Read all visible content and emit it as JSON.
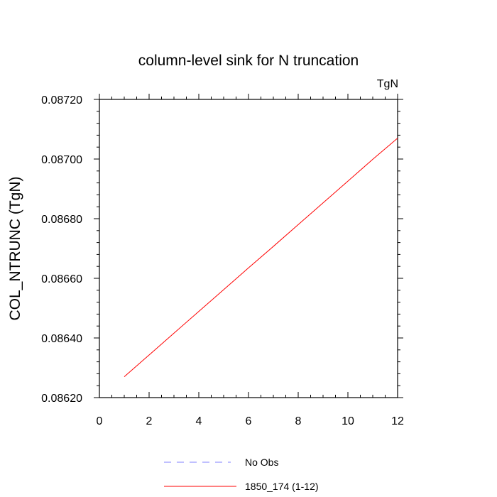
{
  "chart_data": {
    "type": "line",
    "title": "column-level sink for N truncation",
    "units_label": "TgN",
    "ylabel": "COL_NTRUNC  (TgN)",
    "xlabel": "",
    "xlim": [
      0,
      12
    ],
    "ylim": [
      0.0862,
      0.0872
    ],
    "x_ticks": [
      0,
      2,
      4,
      6,
      8,
      10,
      12
    ],
    "x_tick_labels": [
      "0",
      "2",
      "4",
      "6",
      "8",
      "10",
      "12"
    ],
    "y_ticks": [
      0.0862,
      0.0864,
      0.0866,
      0.0868,
      0.087,
      0.0872
    ],
    "y_tick_labels": [
      "0.08620",
      "0.08640",
      "0.08660",
      "0.08680",
      "0.08700",
      "0.08720"
    ],
    "grid": false,
    "legend_position": "bottom",
    "series": [
      {
        "name": "No Obs",
        "color": "#8080ff",
        "dash": "dashed",
        "x": [],
        "y": []
      },
      {
        "name": "1850_174 (1-12)",
        "color": "#ff0000",
        "dash": "solid",
        "x": [
          1,
          2,
          3,
          4,
          5,
          6,
          7,
          8,
          9,
          10,
          11,
          12
        ],
        "y": [
          0.08627,
          0.086343,
          0.086416,
          0.086489,
          0.086562,
          0.086635,
          0.086707,
          0.08678,
          0.086853,
          0.086926,
          0.086999,
          0.08707
        ]
      }
    ]
  }
}
